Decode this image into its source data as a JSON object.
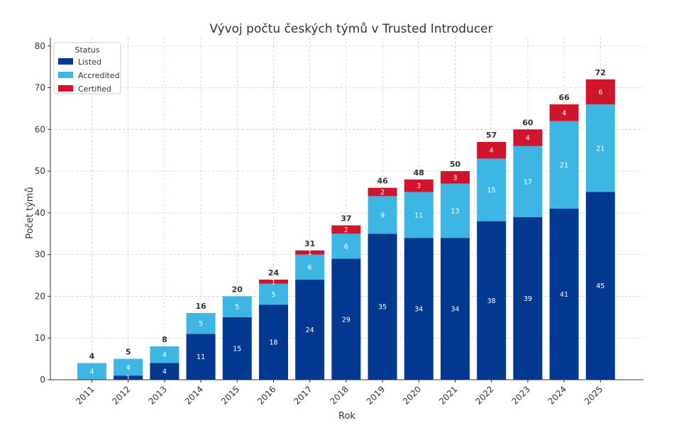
{
  "chart_data": {
    "type": "bar",
    "stacked": true,
    "title": "Vývoj počtu českých týmů v Trusted Introducer",
    "xlabel": "Rok",
    "ylabel": "Počet týmů",
    "ylim": [
      0,
      82
    ],
    "yticks": [
      0,
      10,
      20,
      30,
      40,
      50,
      60,
      70,
      80
    ],
    "grid": true,
    "legend": {
      "title": "Status",
      "placement": "top-left"
    },
    "categories": [
      "2011",
      "2012",
      "2013",
      "2014",
      "2015",
      "2016",
      "2017",
      "2018",
      "2019",
      "2020",
      "2021",
      "2022",
      "2023",
      "2024",
      "2025"
    ],
    "series": [
      {
        "name": "Listed",
        "color": "#033891",
        "values": [
          0,
          1,
          4,
          11,
          15,
          18,
          24,
          29,
          35,
          34,
          34,
          38,
          39,
          41,
          45
        ]
      },
      {
        "name": "Accredited",
        "color": "#3db6e3",
        "values": [
          4,
          4,
          4,
          5,
          5,
          5,
          6,
          6,
          9,
          11,
          13,
          15,
          17,
          21,
          21
        ]
      },
      {
        "name": "Certified",
        "color": "#d0142b",
        "values": [
          0,
          0,
          0,
          0,
          0,
          1,
          1,
          2,
          2,
          3,
          3,
          4,
          4,
          4,
          6
        ]
      }
    ],
    "totals": [
      4,
      5,
      8,
      16,
      20,
      24,
      31,
      37,
      46,
      48,
      50,
      57,
      60,
      66,
      72
    ]
  }
}
